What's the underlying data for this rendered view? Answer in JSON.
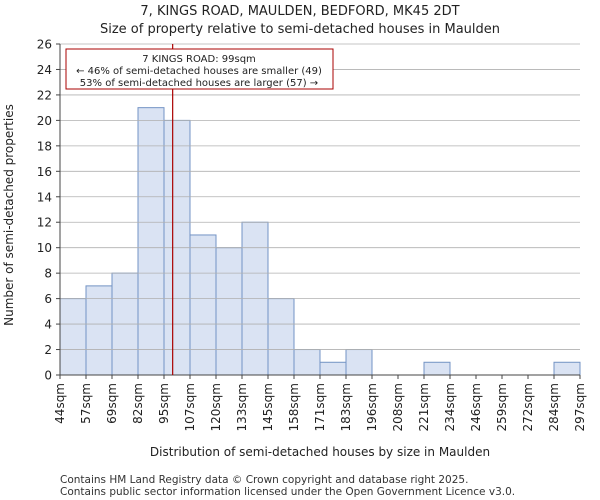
{
  "chart_data": {
    "type": "bar",
    "title": "7, KINGS ROAD, MAULDEN, BEDFORD, MK45 2DT",
    "subtitle": "Size of property relative to semi-detached houses in Maulden",
    "xlabel": "Distribution of semi-detached houses by size in Maulden",
    "ylabel": "Number of semi-detached properties",
    "bin_edges_labels": [
      "44sqm",
      "57sqm",
      "69sqm",
      "82sqm",
      "95sqm",
      "107sqm",
      "120sqm",
      "133sqm",
      "145sqm",
      "158sqm",
      "171sqm",
      "183sqm",
      "196sqm",
      "208sqm",
      "221sqm",
      "234sqm",
      "246sqm",
      "259sqm",
      "272sqm",
      "284sqm",
      "297sqm"
    ],
    "values": [
      6,
      7,
      8,
      21,
      20,
      11,
      10,
      12,
      6,
      2,
      1,
      2,
      0,
      0,
      1,
      0,
      0,
      0,
      0,
      1
    ],
    "ylim": [
      0,
      26
    ],
    "yticks": [
      0,
      2,
      4,
      6,
      8,
      10,
      12,
      14,
      16,
      18,
      20,
      22,
      24,
      26
    ],
    "marker_value_sqm": 99,
    "annotation": {
      "line1": "7 KINGS ROAD: 99sqm",
      "line2": "← 46% of semi-detached houses are smaller (49)",
      "line3": "53% of semi-detached houses are larger (57) →"
    },
    "colors": {
      "bar_fill": "#dae3f3",
      "bar_stroke": "#7393c4",
      "marker": "#aa0000",
      "annotation_border": "#aa0000",
      "grid": "#b0b0b0"
    }
  },
  "footer": {
    "line1": "Contains HM Land Registry data © Crown copyright and database right 2025.",
    "line2": "Contains public sector information licensed under the Open Government Licence v3.0."
  }
}
